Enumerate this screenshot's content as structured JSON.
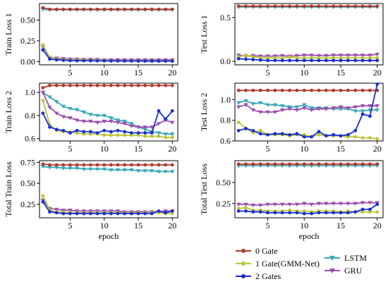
{
  "chart_data": [
    {
      "type": "line",
      "panel": "train-loss-1",
      "ylabel": "Train Loss 1",
      "xlabel": "",
      "xlim": [
        0.5,
        20.8
      ],
      "ylim": [
        -0.04,
        0.7
      ],
      "xticks": [
        5,
        10,
        15,
        20
      ],
      "yticks": [
        0.0,
        0.25,
        0.5
      ],
      "ytick_labels": [
        "0.00",
        "0.25",
        "0.50"
      ],
      "x": [
        1,
        2,
        3,
        4,
        5,
        6,
        7,
        8,
        9,
        10,
        11,
        12,
        13,
        14,
        15,
        16,
        17,
        18,
        19,
        20
      ],
      "series": [
        {
          "name": "0 Gate",
          "values": [
            0.65,
            0.63,
            0.63,
            0.63,
            0.63,
            0.63,
            0.63,
            0.63,
            0.63,
            0.63,
            0.63,
            0.63,
            0.63,
            0.63,
            0.63,
            0.63,
            0.63,
            0.63,
            0.63,
            0.63
          ]
        },
        {
          "name": "1 Gate(GMM-Net)",
          "values": [
            0.2,
            0.05,
            0.03,
            0.025,
            0.02,
            0.02,
            0.02,
            0.015,
            0.015,
            0.015,
            0.01,
            0.01,
            0.01,
            0.01,
            0.01,
            0.01,
            0.01,
            0.01,
            0.01,
            0.01
          ]
        },
        {
          "name": "2 Gates",
          "values": [
            0.14,
            0.03,
            0.02,
            0.015,
            0.012,
            0.01,
            0.01,
            0.01,
            0.008,
            0.008,
            0.007,
            0.007,
            0.006,
            0.006,
            0.006,
            0.005,
            0.005,
            0.005,
            0.005,
            0.005
          ]
        },
        {
          "name": "LSTM",
          "values": [
            0.63,
            0.625,
            0.625,
            0.625,
            0.625,
            0.625,
            0.625,
            0.625,
            0.625,
            0.625,
            0.625,
            0.625,
            0.625,
            0.625,
            0.625,
            0.625,
            0.625,
            0.625,
            0.625,
            0.625
          ]
        },
        {
          "name": "GRU",
          "values": [
            0.18,
            0.05,
            0.04,
            0.035,
            0.03,
            0.03,
            0.025,
            0.025,
            0.025,
            0.02,
            0.02,
            0.02,
            0.02,
            0.02,
            0.02,
            0.02,
            0.02,
            0.02,
            0.02,
            0.02
          ]
        }
      ]
    },
    {
      "type": "line",
      "panel": "test-loss-1",
      "ylabel": "Test Loss 1",
      "xlabel": "",
      "xlim": [
        0.5,
        20.8
      ],
      "ylim": [
        -0.04,
        0.66
      ],
      "xticks": [
        5,
        10,
        15,
        20
      ],
      "yticks": [
        0.0,
        0.5
      ],
      "ytick_labels": [
        "0.0",
        "0.5"
      ],
      "x": [
        1,
        2,
        3,
        4,
        5,
        6,
        7,
        8,
        9,
        10,
        11,
        12,
        13,
        14,
        15,
        16,
        17,
        18,
        19,
        20
      ],
      "series": [
        {
          "name": "0 Gate",
          "values": [
            0.63,
            0.63,
            0.63,
            0.63,
            0.63,
            0.63,
            0.63,
            0.63,
            0.63,
            0.63,
            0.63,
            0.63,
            0.63,
            0.63,
            0.63,
            0.63,
            0.63,
            0.63,
            0.63,
            0.63
          ]
        },
        {
          "name": "1 Gate(GMM-Net)",
          "values": [
            0.05,
            0.07,
            0.05,
            0.04,
            0.04,
            0.04,
            0.04,
            0.05,
            0.04,
            0.04,
            0.04,
            0.04,
            0.04,
            0.04,
            0.04,
            0.04,
            0.04,
            0.04,
            0.04,
            0.04
          ]
        },
        {
          "name": "2 Gates",
          "values": [
            0.03,
            0.025,
            0.02,
            0.015,
            0.01,
            0.01,
            0.01,
            0.01,
            0.01,
            0.01,
            0.01,
            0.01,
            0.01,
            0.01,
            0.01,
            0.01,
            0.01,
            0.01,
            0.01,
            0.01
          ]
        },
        {
          "name": "LSTM",
          "values": [
            0.62,
            0.62,
            0.62,
            0.62,
            0.62,
            0.62,
            0.62,
            0.62,
            0.62,
            0.62,
            0.62,
            0.62,
            0.62,
            0.62,
            0.62,
            0.62,
            0.62,
            0.62,
            0.62,
            0.62
          ]
        },
        {
          "name": "GRU",
          "values": [
            0.07,
            0.06,
            0.065,
            0.06,
            0.06,
            0.06,
            0.065,
            0.06,
            0.065,
            0.07,
            0.07,
            0.065,
            0.065,
            0.07,
            0.07,
            0.07,
            0.07,
            0.07,
            0.07,
            0.08
          ]
        }
      ]
    },
    {
      "type": "line",
      "panel": "train-loss-2",
      "ylabel": "Train Loss 2",
      "xlabel": "",
      "xlim": [
        0.5,
        20.8
      ],
      "ylim": [
        0.58,
        1.08
      ],
      "xticks": [
        5,
        10,
        15,
        20
      ],
      "yticks": [
        0.6,
        0.8,
        1.0
      ],
      "ytick_labels": [
        "0.6",
        "0.8",
        "1.0"
      ],
      "x": [
        1,
        2,
        3,
        4,
        5,
        6,
        7,
        8,
        9,
        10,
        11,
        12,
        13,
        14,
        15,
        16,
        17,
        18,
        19,
        20
      ],
      "series": [
        {
          "name": "0 Gate",
          "values": [
            1.04,
            1.06,
            1.06,
            1.06,
            1.06,
            1.06,
            1.06,
            1.06,
            1.06,
            1.06,
            1.06,
            1.06,
            1.06,
            1.06,
            1.06,
            1.06,
            1.06,
            1.06,
            1.06,
            1.06
          ]
        },
        {
          "name": "1 Gate(GMM-Net)",
          "values": [
            0.93,
            0.72,
            0.67,
            0.66,
            0.66,
            0.65,
            0.64,
            0.64,
            0.64,
            0.63,
            0.63,
            0.63,
            0.63,
            0.63,
            0.63,
            0.62,
            0.62,
            0.62,
            0.61,
            0.61
          ]
        },
        {
          "name": "2 Gates",
          "values": [
            0.82,
            0.7,
            0.68,
            0.67,
            0.65,
            0.67,
            0.66,
            0.66,
            0.65,
            0.67,
            0.66,
            0.67,
            0.66,
            0.65,
            0.65,
            0.65,
            0.65,
            0.84,
            0.77,
            0.84
          ]
        },
        {
          "name": "LSTM",
          "values": [
            1.0,
            0.96,
            0.92,
            0.88,
            0.86,
            0.85,
            0.83,
            0.81,
            0.8,
            0.8,
            0.78,
            0.76,
            0.75,
            0.73,
            0.7,
            0.68,
            0.66,
            0.65,
            0.64,
            0.64
          ]
        },
        {
          "name": "GRU",
          "values": [
            1.0,
            0.87,
            0.82,
            0.79,
            0.78,
            0.76,
            0.75,
            0.75,
            0.74,
            0.75,
            0.75,
            0.74,
            0.73,
            0.71,
            0.7,
            0.7,
            0.7,
            0.73,
            0.76,
            0.74
          ]
        }
      ]
    },
    {
      "type": "line",
      "panel": "test-loss-2",
      "ylabel": "Test Loss 2",
      "xlabel": "",
      "xlim": [
        0.5,
        20.8
      ],
      "ylim": [
        0.6,
        1.16
      ],
      "xticks": [
        5,
        10,
        15,
        20
      ],
      "yticks": [
        0.6,
        0.8,
        1.0
      ],
      "ytick_labels": [
        "0.6",
        "0.8",
        "1.0"
      ],
      "x": [
        1,
        2,
        3,
        4,
        5,
        6,
        7,
        8,
        9,
        10,
        11,
        12,
        13,
        14,
        15,
        16,
        17,
        18,
        19,
        20
      ],
      "series": [
        {
          "name": "0 Gate",
          "values": [
            1.09,
            1.09,
            1.09,
            1.09,
            1.09,
            1.09,
            1.09,
            1.09,
            1.09,
            1.09,
            1.09,
            1.09,
            1.09,
            1.09,
            1.09,
            1.09,
            1.09,
            1.09,
            1.09,
            1.09
          ]
        },
        {
          "name": "1 Gate(GMM-Net)",
          "values": [
            0.78,
            0.72,
            0.68,
            0.7,
            0.66,
            0.66,
            0.66,
            0.65,
            0.66,
            0.66,
            0.64,
            0.66,
            0.65,
            0.65,
            0.65,
            0.64,
            0.64,
            0.63,
            0.63,
            0.62
          ]
        },
        {
          "name": "2 Gates",
          "values": [
            0.7,
            0.72,
            0.7,
            0.67,
            0.66,
            0.67,
            0.67,
            0.66,
            0.67,
            0.64,
            0.64,
            0.69,
            0.65,
            0.66,
            0.65,
            0.66,
            0.7,
            0.86,
            0.84,
            1.15
          ]
        },
        {
          "name": "LSTM",
          "values": [
            0.97,
            0.99,
            0.96,
            0.97,
            0.95,
            0.95,
            0.94,
            0.93,
            0.93,
            0.95,
            0.92,
            0.92,
            0.92,
            0.91,
            0.91,
            0.91,
            0.89,
            0.89,
            0.9,
            0.9
          ]
        },
        {
          "name": "GRU",
          "values": [
            0.93,
            0.95,
            0.9,
            0.88,
            0.88,
            0.88,
            0.9,
            0.91,
            0.9,
            0.92,
            0.9,
            0.91,
            0.91,
            0.92,
            0.93,
            0.92,
            0.93,
            0.94,
            0.94,
            0.94
          ]
        }
      ]
    },
    {
      "type": "line",
      "panel": "total-train-loss",
      "ylabel": "Total Train Loss",
      "xlabel": "epoch",
      "xlim": [
        0.5,
        20.8
      ],
      "ylim": [
        0.09,
        0.77
      ],
      "xticks": [
        5,
        10,
        15,
        20
      ],
      "yticks": [
        0.25,
        0.5,
        0.75
      ],
      "ytick_labels": [
        "0.25",
        "0.50",
        "0.75"
      ],
      "x": [
        1,
        2,
        3,
        4,
        5,
        6,
        7,
        8,
        9,
        10,
        11,
        12,
        13,
        14,
        15,
        16,
        17,
        18,
        19,
        20
      ],
      "series": [
        {
          "name": "0 Gate",
          "values": [
            0.73,
            0.72,
            0.72,
            0.72,
            0.72,
            0.72,
            0.72,
            0.72,
            0.72,
            0.72,
            0.72,
            0.72,
            0.72,
            0.72,
            0.72,
            0.72,
            0.72,
            0.72,
            0.72,
            0.72
          ]
        },
        {
          "name": "1 Gate(GMM-Net)",
          "values": [
            0.35,
            0.18,
            0.16,
            0.16,
            0.15,
            0.15,
            0.15,
            0.15,
            0.15,
            0.15,
            0.15,
            0.15,
            0.15,
            0.15,
            0.15,
            0.15,
            0.15,
            0.15,
            0.14,
            0.14
          ]
        },
        {
          "name": "2 Gates",
          "values": [
            0.28,
            0.16,
            0.15,
            0.14,
            0.14,
            0.14,
            0.14,
            0.14,
            0.14,
            0.14,
            0.14,
            0.14,
            0.14,
            0.14,
            0.14,
            0.14,
            0.14,
            0.17,
            0.15,
            0.17
          ]
        },
        {
          "name": "LSTM",
          "values": [
            0.7,
            0.69,
            0.69,
            0.68,
            0.68,
            0.68,
            0.67,
            0.67,
            0.67,
            0.67,
            0.66,
            0.66,
            0.66,
            0.66,
            0.65,
            0.65,
            0.65,
            0.64,
            0.64,
            0.64
          ]
        },
        {
          "name": "GRU",
          "values": [
            0.3,
            0.2,
            0.19,
            0.18,
            0.18,
            0.17,
            0.17,
            0.17,
            0.17,
            0.17,
            0.17,
            0.17,
            0.16,
            0.16,
            0.16,
            0.16,
            0.16,
            0.16,
            0.17,
            0.17
          ]
        }
      ]
    },
    {
      "type": "line",
      "panel": "total-test-loss",
      "ylabel": "Total Test Loss",
      "xlabel": "epoch",
      "xlim": [
        0.5,
        20.8
      ],
      "ylim": [
        0.08,
        0.76
      ],
      "xticks": [
        5,
        10,
        15,
        20
      ],
      "yticks": [
        0.25,
        0.5
      ],
      "ytick_labels": [
        "0.25",
        "0.50"
      ],
      "x": [
        1,
        2,
        3,
        4,
        5,
        6,
        7,
        8,
        9,
        10,
        11,
        12,
        13,
        14,
        15,
        16,
        17,
        18,
        19,
        20
      ],
      "series": [
        {
          "name": "0 Gate",
          "values": [
            0.72,
            0.72,
            0.72,
            0.72,
            0.72,
            0.72,
            0.72,
            0.72,
            0.72,
            0.72,
            0.72,
            0.72,
            0.72,
            0.72,
            0.72,
            0.72,
            0.72,
            0.72,
            0.72,
            0.72
          ]
        },
        {
          "name": "1 Gate(GMM-Net)",
          "values": [
            0.19,
            0.2,
            0.17,
            0.17,
            0.16,
            0.16,
            0.16,
            0.17,
            0.16,
            0.16,
            0.15,
            0.16,
            0.16,
            0.16,
            0.15,
            0.16,
            0.15,
            0.15,
            0.15,
            0.15
          ]
        },
        {
          "name": "2 Gates",
          "values": [
            0.16,
            0.16,
            0.15,
            0.15,
            0.14,
            0.14,
            0.14,
            0.14,
            0.14,
            0.13,
            0.13,
            0.14,
            0.14,
            0.14,
            0.14,
            0.14,
            0.15,
            0.18,
            0.18,
            0.24
          ]
        },
        {
          "name": "LSTM",
          "values": [
            0.7,
            0.7,
            0.7,
            0.7,
            0.7,
            0.7,
            0.7,
            0.7,
            0.7,
            0.7,
            0.7,
            0.7,
            0.7,
            0.7,
            0.7,
            0.7,
            0.7,
            0.7,
            0.7,
            0.7
          ]
        },
        {
          "name": "GRU",
          "values": [
            0.24,
            0.24,
            0.23,
            0.23,
            0.24,
            0.24,
            0.24,
            0.24,
            0.24,
            0.25,
            0.24,
            0.25,
            0.25,
            0.25,
            0.25,
            0.25,
            0.25,
            0.26,
            0.26,
            0.26
          ]
        }
      ]
    }
  ],
  "legend": {
    "placement": "bottom-right",
    "items": [
      {
        "label": "0 Gate",
        "color": "#b03a2e",
        "marker": "circle"
      },
      {
        "label": "LSTM",
        "color": "#3aa8b8",
        "marker": "tri-down"
      },
      {
        "label": "1 Gate(GMM-Net)",
        "color": "#bcc43a",
        "marker": "circle"
      },
      {
        "label": "GRU",
        "color": "#9b4fb0",
        "marker": "tri-down"
      },
      {
        "label": "2 Gates",
        "color": "#1a2ed0",
        "marker": "circle"
      }
    ]
  },
  "series_styles": {
    "0 Gate": {
      "color": "#b03a2e",
      "marker": "circle"
    },
    "1 Gate(GMM-Net)": {
      "color": "#bcc43a",
      "marker": "circle"
    },
    "2 Gates": {
      "color": "#1a2ed0",
      "marker": "circle"
    },
    "LSTM": {
      "color": "#3aa8b8",
      "marker": "tri-down"
    },
    "GRU": {
      "color": "#9b4fb0",
      "marker": "tri-down"
    }
  },
  "draw_order": [
    "LSTM",
    "GRU",
    "1 Gate(GMM-Net)",
    "0 Gate",
    "2 Gates"
  ]
}
